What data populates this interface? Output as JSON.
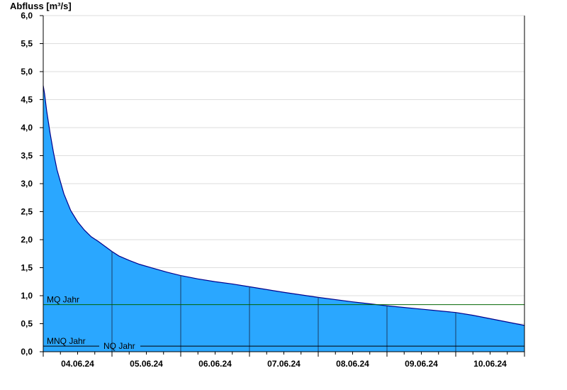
{
  "chart_data": {
    "type": "area",
    "title": "",
    "ylabel": "Abfluss [m³/s]",
    "xlabel": "",
    "ylim": [
      0,
      6.0
    ],
    "y_ticks": [
      "0,0",
      "0,5",
      "1,0",
      "1,5",
      "2,0",
      "2,5",
      "3,0",
      "3,5",
      "4,0",
      "4,5",
      "5,0",
      "5,5",
      "6,0"
    ],
    "x_range_days": [
      0,
      7
    ],
    "x_tick_labels": [
      "04.06.24",
      "05.06.24",
      "06.06.24",
      "07.06.24",
      "08.06.24",
      "09.06.24",
      "10.06.24"
    ],
    "grid": true,
    "fill_color": "#2aa7ff",
    "line_color": "#00008b",
    "series": [
      {
        "x": [
          0,
          0.02,
          0.05,
          0.1,
          0.15,
          0.2,
          0.3,
          0.4,
          0.5,
          0.6,
          0.7,
          0.8,
          0.9,
          1.0,
          1.1,
          1.25,
          1.4,
          1.6,
          1.8,
          2.0,
          2.25,
          2.5,
          2.75,
          3.0,
          3.5,
          4.0,
          4.5,
          5.0,
          5.5,
          6.0,
          6.25,
          6.5,
          6.75,
          7.0
        ],
        "y": [
          4.75,
          4.6,
          4.3,
          3.9,
          3.55,
          3.25,
          2.82,
          2.52,
          2.32,
          2.17,
          2.05,
          1.97,
          1.88,
          1.79,
          1.71,
          1.63,
          1.56,
          1.49,
          1.42,
          1.36,
          1.3,
          1.25,
          1.21,
          1.16,
          1.06,
          0.97,
          0.89,
          0.82,
          0.76,
          0.7,
          0.65,
          0.59,
          0.53,
          0.47
        ]
      }
    ],
    "reference_lines": [
      {
        "label": "MQ Jahr",
        "value": 0.84,
        "color": "#006400"
      },
      {
        "label": "MNQ Jahr",
        "value": 0.1,
        "color": "#000000"
      },
      {
        "label": "NQ Jahr",
        "value": 0.1,
        "color": "#000000"
      }
    ]
  }
}
